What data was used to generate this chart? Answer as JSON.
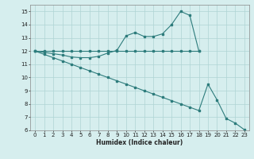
{
  "line1_x": [
    0,
    1,
    2,
    3,
    4,
    5,
    6,
    7,
    8,
    9,
    10,
    11,
    12,
    13,
    14,
    15,
    16,
    17,
    18
  ],
  "line1_y": [
    12,
    11.9,
    11.8,
    11.7,
    11.55,
    11.5,
    11.5,
    11.6,
    11.85,
    12.05,
    13.15,
    13.4,
    13.1,
    13.1,
    13.3,
    14.0,
    15.0,
    14.7,
    12.0
  ],
  "line2_x": [
    0,
    1,
    2,
    3,
    4,
    5,
    6,
    7,
    8,
    9,
    10,
    11,
    12,
    13,
    14,
    15,
    16,
    17,
    18
  ],
  "line2_y": [
    12,
    12,
    12,
    12,
    12,
    12,
    12,
    12,
    12,
    12,
    12,
    12,
    12,
    12,
    12,
    12,
    12,
    12,
    12
  ],
  "line3_x": [
    0,
    1,
    2,
    3,
    4,
    5,
    6,
    7,
    8,
    9,
    10,
    11,
    12,
    13,
    14,
    15,
    16,
    17,
    18,
    19,
    20,
    21,
    22,
    23
  ],
  "line3_y": [
    12,
    11.75,
    11.5,
    11.25,
    11.0,
    10.75,
    10.5,
    10.25,
    10.0,
    9.75,
    9.5,
    9.25,
    9.0,
    8.75,
    8.5,
    8.25,
    8.0,
    7.75,
    7.5,
    9.5,
    8.3,
    6.9,
    6.55,
    6.05
  ],
  "color": "#2d7c7c",
  "bg_color": "#d6eeee",
  "grid_color": "#aed4d4",
  "xlabel": "Humidex (Indice chaleur)",
  "ylim": [
    6,
    15.5
  ],
  "xlim": [
    -0.5,
    23.5
  ],
  "yticks": [
    6,
    7,
    8,
    9,
    10,
    11,
    12,
    13,
    14,
    15
  ],
  "xticks": [
    0,
    1,
    2,
    3,
    4,
    5,
    6,
    7,
    8,
    9,
    10,
    11,
    12,
    13,
    14,
    15,
    16,
    17,
    18,
    19,
    20,
    21,
    22,
    23
  ]
}
